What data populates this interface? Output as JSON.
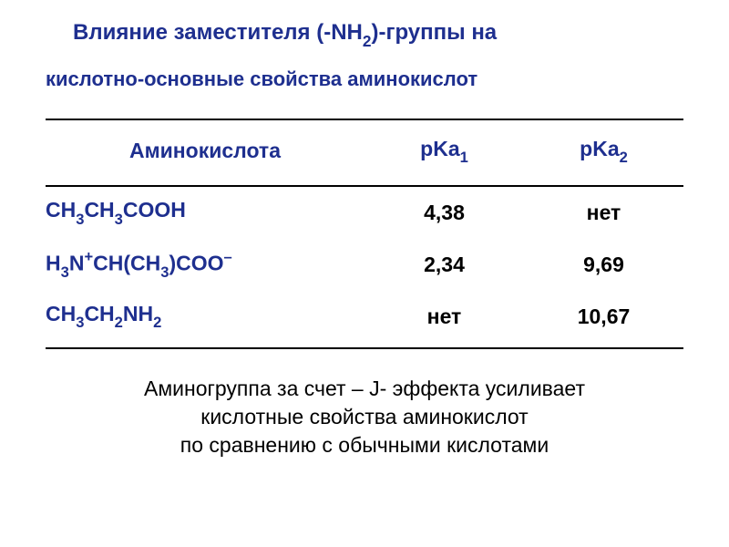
{
  "title_parts": [
    "Влияние заместителя (-NH",
    "2",
    ")-группы на"
  ],
  "subtitle": "кислотно-основные свойства  аминокислот",
  "table": {
    "header": {
      "col1": "Аминокислота",
      "col2_parts": [
        "pKa",
        "1"
      ],
      "col3_parts": [
        "pKa",
        "2"
      ]
    },
    "rows": [
      {
        "formula_html": "CH<span class='sub'>3</span>CH<span class='sub'>3</span>COOH",
        "pka1": "4,38",
        "pka2": "нет"
      },
      {
        "formula_html": "H<span class='sub'>3</span>N<span class='sup'>+</span>CH(CH<span class='sub'>3</span>)COO<span class='sup'>–</span>",
        "pka1": "2,34",
        "pka2": "9,69"
      },
      {
        "formula_html": "CH<span class='sub'>3</span>CH<span class='sub'>2</span>NH<span class='sub'>2</span>",
        "pka1": "нет",
        "pka2": "10,67"
      }
    ]
  },
  "footer_lines": [
    "Аминогруппа  за счет – J- эффекта  усиливает",
    "кислотные свойства  аминокислот",
    "по сравнению с обычными кислотами"
  ],
  "colors": {
    "heading": "#1e2f8f",
    "body_text": "#000000",
    "border": "#000000",
    "background": "#ffffff"
  },
  "column_widths_pct": [
    50,
    25,
    25
  ]
}
